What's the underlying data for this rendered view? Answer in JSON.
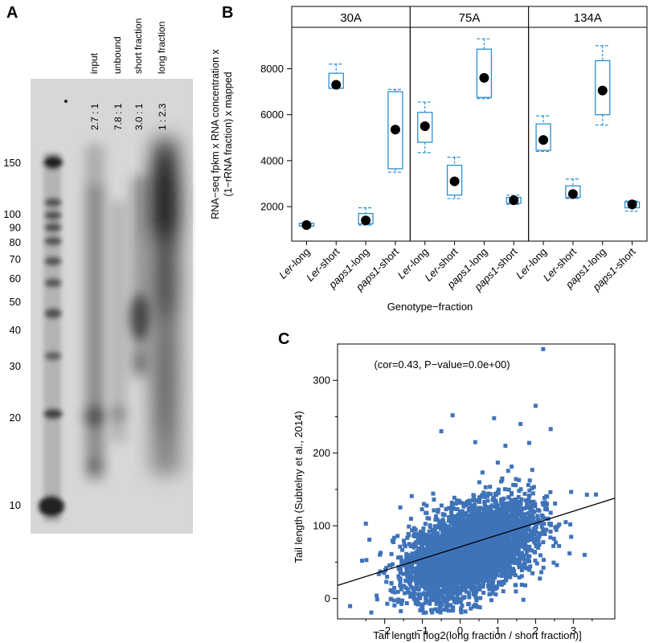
{
  "panel_labels": [
    "A",
    "B",
    "C"
  ],
  "gel": {
    "lane_labels": [
      "input",
      "unbound",
      "short fraction",
      "long fraction"
    ],
    "ratios": [
      "2.7 : 1",
      "7.8 : 1",
      "3.0 : 1",
      "1 : 2.3"
    ],
    "ladder": [
      "150",
      "100",
      "90",
      "80",
      "70",
      "60",
      "50",
      "40",
      "30",
      "20",
      "10"
    ],
    "ladder_values": [
      150,
      100,
      90,
      80,
      70,
      60,
      50,
      40,
      30,
      20,
      10
    ]
  },
  "chart_data": [
    {
      "type": "box",
      "facets": [
        "30A",
        "75A",
        "134A"
      ],
      "categories": [
        "Ler-long",
        "Ler-short",
        "paps1-long",
        "paps1-short"
      ],
      "category_labels": [
        {
          "italic": "Ler",
          "rest": "-long"
        },
        {
          "italic": "Ler",
          "rest": "-short"
        },
        {
          "italic": "paps1",
          "rest": "-long"
        },
        {
          "italic": "paps1",
          "rest": "-short"
        }
      ],
      "xlabel": "Genotype−fraction",
      "ylabel_lines": [
        "RNA−seq fpkm x RNA concentration x",
        "(1−rRNA fraction) x mapped"
      ],
      "ylim": [
        500,
        9800
      ],
      "yticks": [
        2000,
        4000,
        6000,
        8000
      ],
      "ytick_labels": [
        "2000",
        "4000",
        "6000",
        "8000"
      ],
      "box_color": "#2a8fd0",
      "boxes": [
        [
          {
            "median": 1200,
            "q1": 1150,
            "q3": 1280,
            "wlo": 1150,
            "whi": 1280
          },
          {
            "median": 7300,
            "q1": 7150,
            "q3": 7800,
            "wlo": 7150,
            "whi": 8200
          },
          {
            "median": 1400,
            "q1": 1250,
            "q3": 1700,
            "wlo": 1200,
            "whi": 1950
          },
          {
            "median": 5350,
            "q1": 3650,
            "q3": 7000,
            "wlo": 3500,
            "whi": 7100
          }
        ],
        [
          {
            "median": 5500,
            "q1": 4800,
            "q3": 6100,
            "wlo": 4350,
            "whi": 6550
          },
          {
            "median": 3100,
            "q1": 2500,
            "q3": 3800,
            "wlo": 2350,
            "whi": 4150
          },
          {
            "median": 7600,
            "q1": 6750,
            "q3": 8850,
            "wlo": 6700,
            "whi": 9300
          },
          {
            "median": 2280,
            "q1": 2150,
            "q3": 2400,
            "wlo": 2100,
            "whi": 2500
          }
        ],
        [
          {
            "median": 4900,
            "q1": 4450,
            "q3": 5600,
            "wlo": 4400,
            "whi": 5950
          },
          {
            "median": 2550,
            "q1": 2400,
            "q3": 2900,
            "wlo": 2350,
            "whi": 3200
          },
          {
            "median": 7050,
            "q1": 6000,
            "q3": 8350,
            "wlo": 5550,
            "whi": 9000
          },
          {
            "median": 2100,
            "q1": 1950,
            "q3": 2200,
            "wlo": 1800,
            "whi": 2250
          }
        ]
      ]
    },
    {
      "type": "scatter",
      "annotation": "(cor=0.43, P−value=0.0e+00)",
      "xlabel": "Tail length [log2(long fraction / short fraction)]",
      "ylabel": "Tail length (Subtelny et al., 2014)",
      "xlim": [
        -3.25,
        4.1
      ],
      "ylim": [
        -28,
        350
      ],
      "xticks": [
        -2,
        -1,
        0,
        1,
        2,
        3
      ],
      "xtick_labels": [
        "−2",
        "−1",
        "0",
        "1",
        "2",
        "3"
      ],
      "yticks": [
        0,
        100,
        200,
        300
      ],
      "ytick_labels": [
        "0",
        "100",
        "200",
        "300"
      ],
      "point_color": "#3f73b8",
      "fit_line": {
        "x": [
          -3.25,
          4.1
        ],
        "y": [
          18,
          138
        ]
      },
      "cloud": {
        "x_mean": 0.3,
        "x_sd": 0.8,
        "y_mean": 68,
        "y_sd": 28,
        "slope": 17,
        "n": 5000
      },
      "points": [
        {
          "x": 2.2,
          "y": 343
        },
        {
          "x": 2.0,
          "y": 265
        },
        {
          "x": -0.2,
          "y": 252
        },
        {
          "x": 1.6,
          "y": 240
        },
        {
          "x": 2.4,
          "y": 233
        },
        {
          "x": 0.9,
          "y": 248
        },
        {
          "x": 0.4,
          "y": 215
        },
        {
          "x": -2.5,
          "y": 103
        },
        {
          "x": 3.6,
          "y": 143
        },
        {
          "x": 3.3,
          "y": 60
        },
        {
          "x": 2.9,
          "y": 62
        },
        {
          "x": -2.6,
          "y": 52
        },
        {
          "x": -0.5,
          "y": 230
        },
        {
          "x": 1.2,
          "y": 210
        },
        {
          "x": 2.8,
          "y": 105
        }
      ]
    }
  ]
}
